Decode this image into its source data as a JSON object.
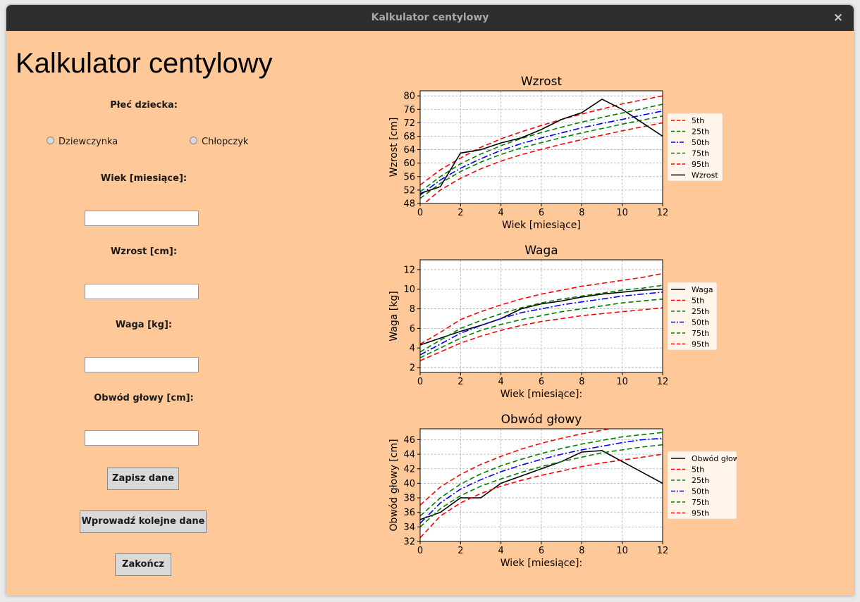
{
  "window": {
    "title": "Kalkulator centylowy",
    "close_glyph": "×"
  },
  "form": {
    "heading": "Kalkulator centylowy",
    "sex_label": "Płeć dziecka:",
    "radio_girl": "Dziewczynka",
    "radio_boy": "Chłopczyk",
    "age_label": "Wiek [miesiące]:",
    "height_label": "Wzrost [cm]:",
    "weight_label": "Waga [kg]:",
    "head_label": "Obwód głowy [cm]:",
    "age_value": "",
    "height_value": "",
    "weight_value": "",
    "head_value": "",
    "save_button": "Zapisz dane",
    "next_button": "Wprowadź kolejne dane",
    "quit_button": "Zakończ"
  },
  "chart_data": [
    {
      "type": "line",
      "title": "Wzrost",
      "xlabel": "Wiek [miesiące]",
      "ylabel": "Wzrost [cm]",
      "xlim": [
        0,
        12
      ],
      "ylim": [
        48,
        81.5
      ],
      "xticks": [
        0,
        2,
        4,
        6,
        8,
        10,
        12
      ],
      "yticks": [
        48,
        52,
        56,
        60,
        64,
        68,
        72,
        76,
        80
      ],
      "grid": true,
      "legend": "outside-right",
      "legend_order": [
        "5th",
        "25th",
        "50th",
        "75th",
        "95th",
        "Wzrost"
      ],
      "x": [
        0,
        1,
        2,
        3,
        4,
        5,
        6,
        7,
        8,
        9,
        10,
        11,
        12
      ],
      "series": [
        {
          "name": "5th",
          "color": "#ff0000",
          "style": "dashed",
          "values": [
            47,
            52,
            55.5,
            58.3,
            60.6,
            62.5,
            64.1,
            65.6,
            67,
            68.3,
            69.6,
            70.8,
            72
          ]
        },
        {
          "name": "25th",
          "color": "#008000",
          "style": "dashed",
          "values": [
            49.5,
            54,
            57.5,
            60.3,
            62.6,
            64.5,
            66.1,
            67.6,
            69,
            70.3,
            71.6,
            72.8,
            74
          ]
        },
        {
          "name": "50th",
          "color": "#0000ff",
          "style": "dashdot",
          "values": [
            50.5,
            55,
            58.5,
            61.3,
            63.8,
            65.8,
            67.5,
            69,
            70.5,
            71.8,
            73,
            74.3,
            75.5
          ]
        },
        {
          "name": "75th",
          "color": "#008000",
          "style": "dashed",
          "values": [
            51.5,
            56,
            59.8,
            62.7,
            65.2,
            67.3,
            69.1,
            70.7,
            72.2,
            73.6,
            74.9,
            76.2,
            77.5
          ]
        },
        {
          "name": "95th",
          "color": "#ff0000",
          "style": "dashed",
          "values": [
            53.5,
            58,
            61.5,
            64.7,
            67.2,
            69.3,
            71.2,
            73,
            74.6,
            76.1,
            77.6,
            78.8,
            80
          ]
        },
        {
          "name": "Wzrost",
          "color": "#000000",
          "style": "solid",
          "x": [
            0,
            1,
            2,
            3,
            4,
            5,
            6,
            7,
            8,
            9,
            10,
            11,
            12
          ],
          "values": [
            51,
            53,
            63,
            64,
            66,
            67.5,
            70,
            73,
            75,
            79,
            76,
            72,
            68
          ]
        }
      ]
    },
    {
      "type": "line",
      "title": "Waga",
      "xlabel": "Wiek [miesiące]:",
      "ylabel": "Waga [kg]",
      "xlim": [
        0,
        12
      ],
      "ylim": [
        1.5,
        13
      ],
      "xticks": [
        0,
        2,
        4,
        6,
        8,
        10,
        12
      ],
      "yticks": [
        2,
        4,
        6,
        8,
        10,
        12
      ],
      "grid": true,
      "legend": "outside-right",
      "legend_order": [
        "Waga",
        "5th",
        "25th",
        "50th",
        "75th",
        "95th"
      ],
      "x": [
        0,
        1,
        2,
        3,
        4,
        5,
        6,
        7,
        8,
        9,
        10,
        11,
        12
      ],
      "series": [
        {
          "name": "Waga",
          "color": "#000000",
          "style": "solid",
          "x": [
            0,
            1,
            2,
            3,
            4,
            5,
            6,
            7,
            8,
            9,
            10,
            11,
            12
          ],
          "values": [
            4.3,
            5,
            5.7,
            6.3,
            7,
            8,
            8.5,
            8.8,
            9.2,
            9.5,
            9.7,
            9.9,
            10
          ]
        },
        {
          "name": "5th",
          "color": "#ff0000",
          "style": "dashed",
          "values": [
            2.7,
            3.6,
            4.5,
            5.2,
            5.8,
            6.3,
            6.7,
            7,
            7.3,
            7.5,
            7.7,
            7.9,
            8.1
          ]
        },
        {
          "name": "25th",
          "color": "#008000",
          "style": "dashed",
          "values": [
            3,
            4,
            5,
            5.8,
            6.4,
            6.9,
            7.3,
            7.7,
            8,
            8.3,
            8.6,
            8.8,
            9
          ]
        },
        {
          "name": "50th",
          "color": "#0000ff",
          "style": "dashdot",
          "values": [
            3.3,
            4.4,
            5.5,
            6.3,
            7,
            7.6,
            8,
            8.4,
            8.7,
            9,
            9.3,
            9.5,
            9.7
          ]
        },
        {
          "name": "75th",
          "color": "#008000",
          "style": "dashed",
          "values": [
            3.6,
            4.8,
            6,
            6.8,
            7.5,
            8.1,
            8.6,
            9,
            9.3,
            9.6,
            9.9,
            10.1,
            10.4
          ]
        },
        {
          "name": "95th",
          "color": "#ff0000",
          "style": "dashed",
          "values": [
            4.4,
            5.6,
            6.9,
            7.7,
            8.4,
            9,
            9.5,
            9.9,
            10.3,
            10.6,
            10.9,
            11.2,
            11.6
          ]
        }
      ]
    },
    {
      "type": "line",
      "title": "Obwód głowy",
      "xlabel": "Wiek [miesiące]:",
      "ylabel": "Obwód głowy [cm]",
      "xlim": [
        0,
        12
      ],
      "ylim": [
        32,
        47.5
      ],
      "xticks": [
        0,
        2,
        4,
        6,
        8,
        10,
        12
      ],
      "yticks": [
        32,
        34,
        36,
        38,
        40,
        42,
        44,
        46
      ],
      "grid": true,
      "legend": "outside-right",
      "legend_order": [
        "Obwód głowy",
        "5th",
        "25th",
        "50th",
        "75th",
        "95th"
      ],
      "x": [
        0,
        1,
        2,
        3,
        4,
        5,
        6,
        7,
        8,
        9,
        10,
        11,
        12
      ],
      "series": [
        {
          "name": "Obwód głowy",
          "color": "#000000",
          "style": "solid",
          "x": [
            0,
            1,
            2,
            3,
            4,
            5,
            6,
            7,
            8,
            9,
            10,
            11,
            12
          ],
          "values": [
            35,
            36,
            38,
            38,
            40,
            41,
            42,
            43,
            44.3,
            44.5,
            43,
            41.5,
            40
          ]
        },
        {
          "name": "5th",
          "color": "#ff0000",
          "style": "dashed",
          "values": [
            32.5,
            35.5,
            37.3,
            38.6,
            39.6,
            40.4,
            41.1,
            41.7,
            42.3,
            42.8,
            43.2,
            43.6,
            44
          ]
        },
        {
          "name": "25th",
          "color": "#008000",
          "style": "dashed",
          "values": [
            34,
            36.5,
            38.3,
            39.6,
            40.6,
            41.5,
            42.3,
            43,
            43.6,
            44.2,
            44.6,
            45,
            45.3
          ]
        },
        {
          "name": "50th",
          "color": "#0000ff",
          "style": "dashdot",
          "values": [
            34.5,
            37.3,
            39.2,
            40.5,
            41.6,
            42.5,
            43.3,
            44,
            44.6,
            45.1,
            45.6,
            46,
            46.2
          ]
        },
        {
          "name": "75th",
          "color": "#008000",
          "style": "dashed",
          "values": [
            35.5,
            38,
            39.9,
            41.3,
            42.4,
            43.3,
            44.1,
            44.8,
            45.4,
            45.9,
            46.4,
            46.7,
            47
          ]
        },
        {
          "name": "95th",
          "color": "#ff0000",
          "style": "dashed",
          "values": [
            37,
            39.5,
            41.2,
            42.6,
            43.7,
            44.7,
            45.5,
            46.2,
            46.8,
            47.3,
            47.8,
            48.1,
            48.4
          ]
        }
      ]
    }
  ]
}
